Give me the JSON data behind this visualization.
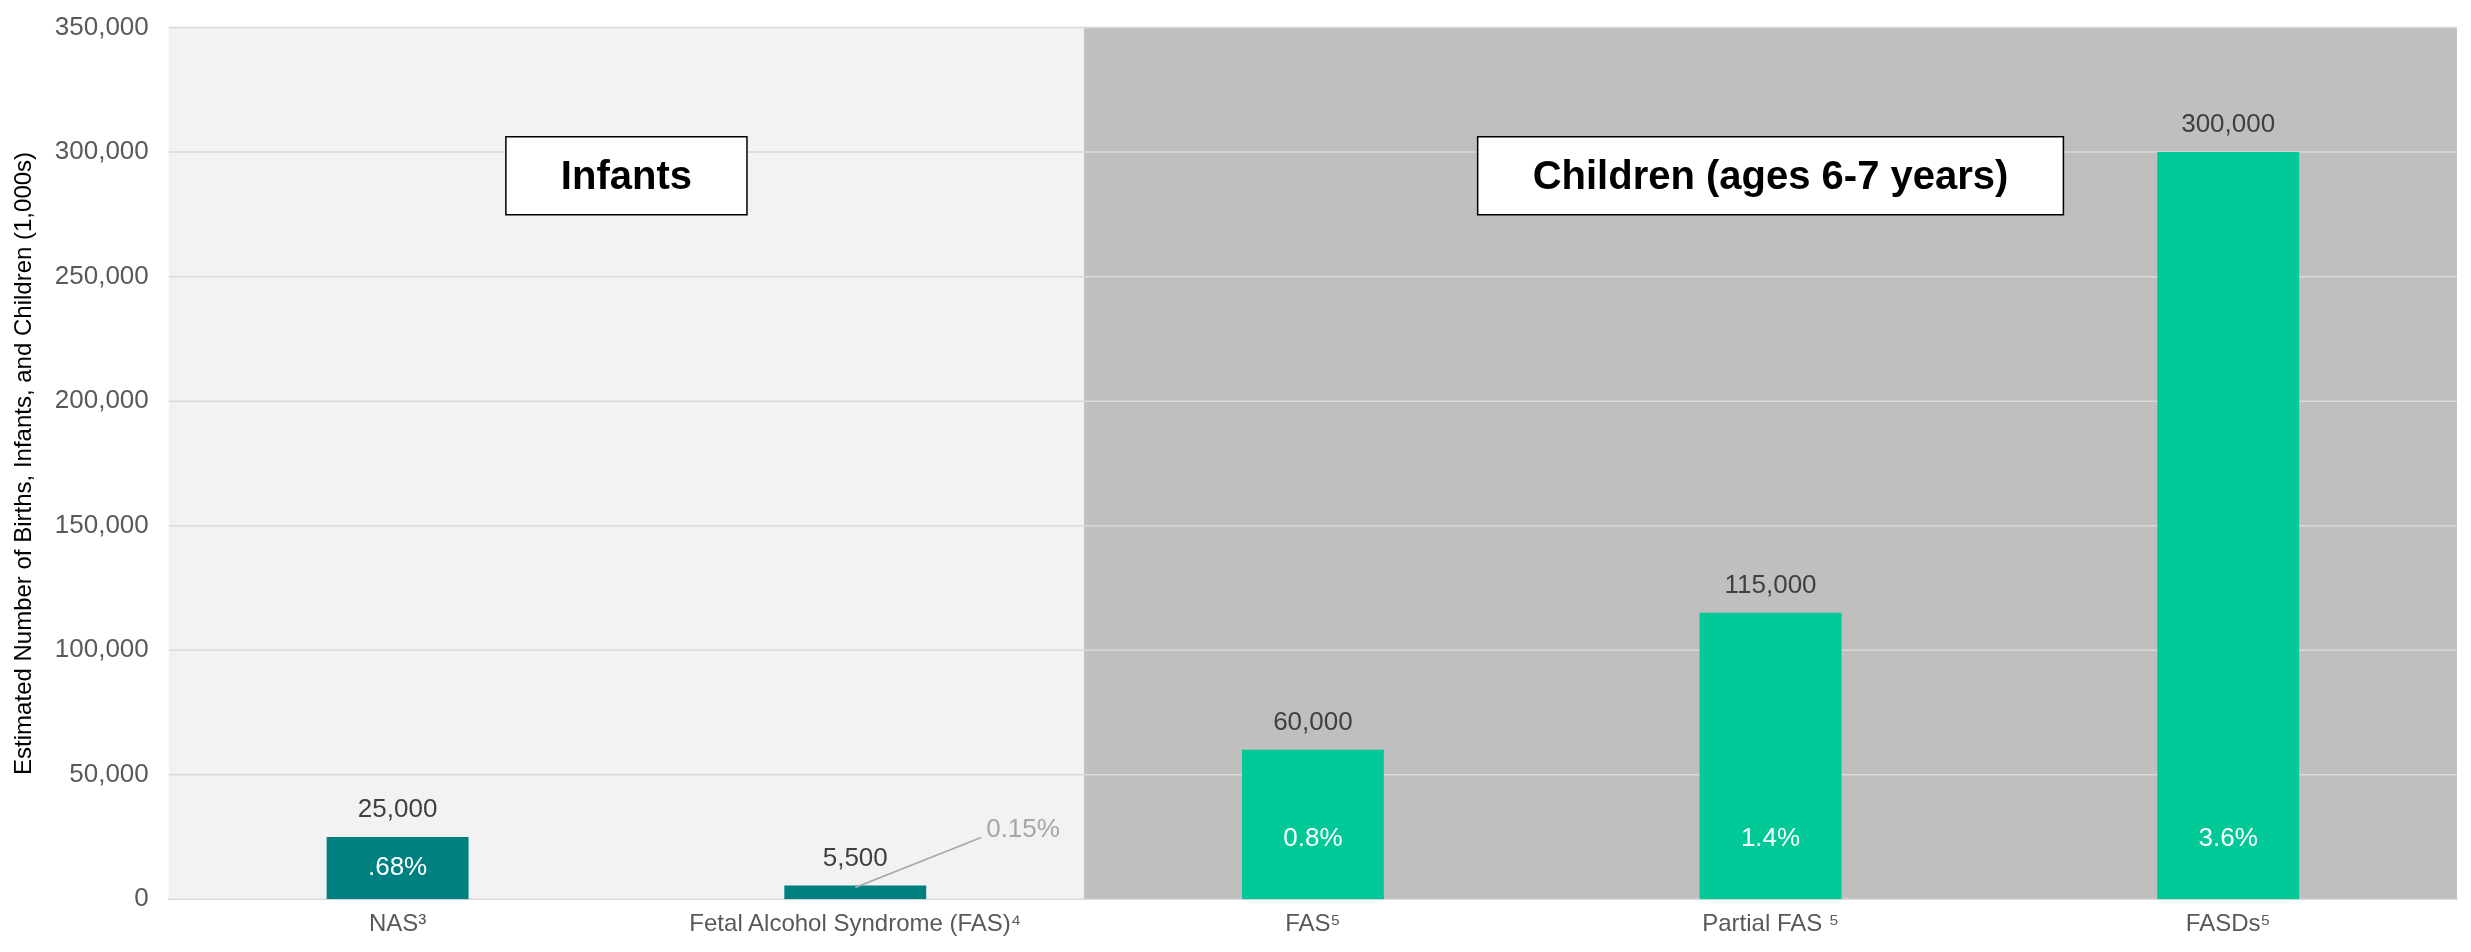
{
  "chart_data": {
    "type": "bar",
    "ylabel": "Estimated Number of Births, Infants, and Children (1,000s)",
    "categories": [
      "NAS³",
      "Fetal Alcohol Syndrome (FAS)⁴",
      "FAS⁵",
      "Partial FAS ⁵",
      "FASDs⁵"
    ],
    "values": [
      25000,
      5500,
      60000,
      115000,
      300000
    ],
    "value_labels": [
      "25,000",
      "5,500",
      "60,000",
      "115,000",
      "300,000"
    ],
    "colors": [
      "#008080",
      "#008080",
      "#00c896",
      "#00c896",
      "#00c896"
    ],
    "ylim": [
      0,
      350000
    ],
    "yticks": [
      {
        "value": 0,
        "label": "0"
      },
      {
        "value": 50000,
        "label": "50,000"
      },
      {
        "value": 100000,
        "label": "100,000"
      },
      {
        "value": 150000,
        "label": "150,000"
      },
      {
        "value": 200000,
        "label": "200,000"
      },
      {
        "value": 250000,
        "label": "250,000"
      },
      {
        "value": 300000,
        "label": "300,000"
      },
      {
        "value": 350000,
        "label": "350,000"
      }
    ],
    "grid": "y",
    "legend": false,
    "bands": [
      {
        "axis": "x",
        "from": "NAS³",
        "to": "Fetal Alcohol Syndrome (FAS)⁴",
        "label": "Infants",
        "color": "#f2f2f2"
      },
      {
        "axis": "x",
        "from": "FAS⁵",
        "to": "FASDs⁵",
        "label": "Children (ages 6-7 years)",
        "color": "#bfbfbf"
      }
    ],
    "annotations": [
      ".68%",
      {
        "text": "0.15%",
        "x": "Fetal Alcohol Syndrome (FAS)⁴",
        "y": 5500
      },
      "0.8%",
      "1.4%",
      "3.6%"
    ]
  }
}
